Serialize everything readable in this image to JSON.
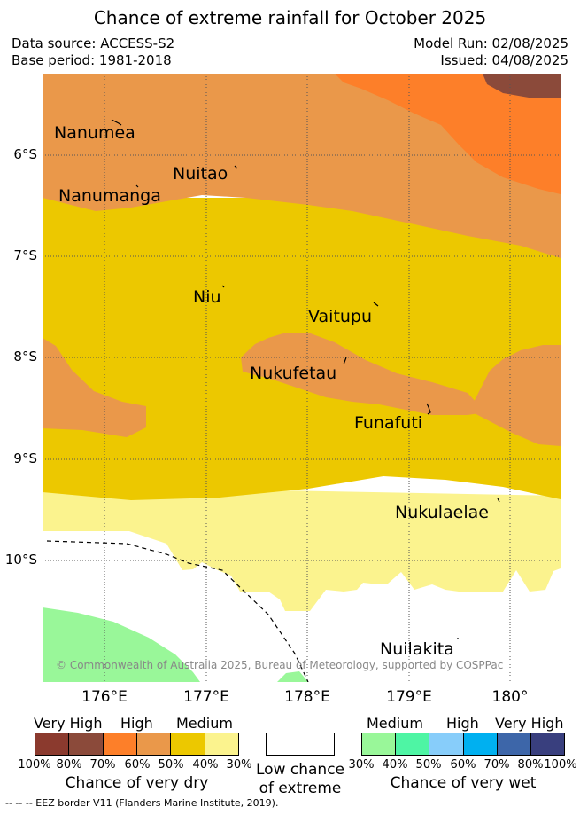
{
  "title": "Chance of extreme rainfall for October 2025",
  "meta": {
    "data_source": "Data source: ACCESS-S2",
    "base_period": "Base period: 1981-2018",
    "model_run": "Model Run: 02/08/2025",
    "issued": "Issued: 04/08/2025"
  },
  "y_ticks": [
    "6°S",
    "7°S",
    "8°S",
    "9°S",
    "10°S"
  ],
  "x_ticks": [
    "176°E",
    "177°E",
    "178°E",
    "179°E",
    "180°"
  ],
  "places": {
    "nanumea": "Nanumea",
    "nuitao": "Nuitao",
    "nanumanga": "Nanumanga",
    "niu": "Niu",
    "vaitupu": "Vaitupu",
    "nukufetau": "Nukufetau",
    "funafuti": "Funafuti",
    "nukulaelae": "Nukulaelae",
    "nuilakita": "Nuilakita"
  },
  "copyright": "© Commonwealth of Australia 2025, Bureau of Meteorology, supported by COSPPac",
  "colors": {
    "dry_very_high_1": "#8b3a2e",
    "dry_very_high_2": "#8b4a3a",
    "dry_high_1": "#fd7f29",
    "dry_high_2": "#ea984a",
    "dry_medium_1": "#ecc800",
    "dry_medium_2": "#fbf38e",
    "low": "#ffffff",
    "wet_medium_1": "#99f799",
    "wet_medium_2": "#4ef5a4",
    "wet_high_1": "#87cdfa",
    "wet_high_2": "#00b0f0",
    "wet_very_high_1": "#3d66a9",
    "wet_very_high_2": "#393f7e"
  },
  "legend": {
    "dry": {
      "levels": [
        "Very High",
        "High",
        "Medium"
      ],
      "percents": [
        "100%",
        "80%",
        "70%",
        "60%",
        "50%",
        "40%",
        "30%"
      ],
      "caption": "Chance of very dry"
    },
    "low": {
      "caption_line1": "Low chance",
      "caption_line2": "of extreme"
    },
    "wet": {
      "levels": [
        "Medium",
        "High",
        "Very High"
      ],
      "percents": [
        "30%",
        "40%",
        "50%",
        "60%",
        "70%",
        "80%",
        "100%"
      ],
      "caption": "Chance of very wet"
    }
  },
  "footnote": "-- -- -- EEZ border V11 (Flanders Marine Institute, 2019)."
}
